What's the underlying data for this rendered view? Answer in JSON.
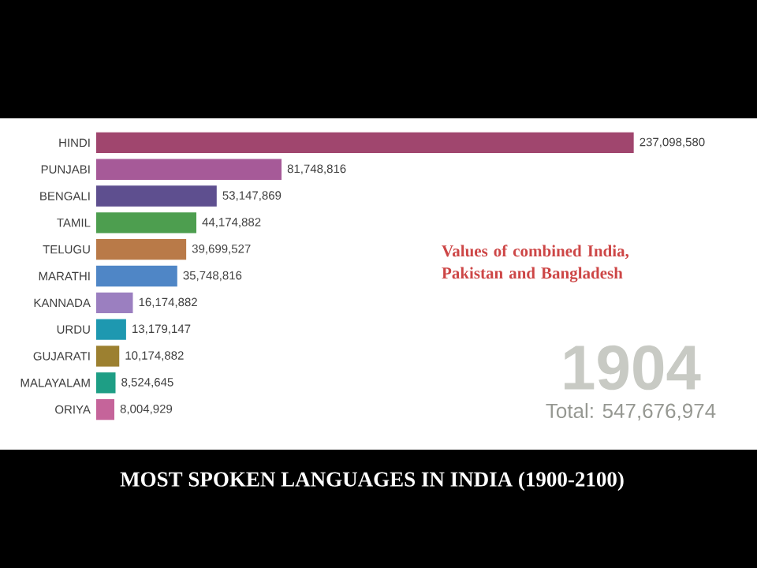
{
  "chart_data": {
    "type": "bar",
    "orientation": "horizontal",
    "title": "MOST SPOKEN LANGUAGES IN INDIA (1900-2100)",
    "categories": [
      "HINDI",
      "PUNJABI",
      "BENGALI",
      "TAMIL",
      "TELUGU",
      "MARATHI",
      "KANNADA",
      "URDU",
      "GUJARATI",
      "MALAYALAM",
      "ORIYA"
    ],
    "values": [
      237098580,
      81748816,
      53147869,
      44174882,
      39699527,
      35748816,
      16174882,
      13179147,
      10174882,
      8524645,
      8004929
    ],
    "value_labels": [
      "237,098,580",
      "81,748,816",
      "53,147,869",
      "44,174,882",
      "39,699,527",
      "35,748,816",
      "16,174,882",
      "13,179,147",
      "10,174,882",
      "8,524,645",
      "8,004,929"
    ],
    "colors": [
      "#a0466e",
      "#a65a98",
      "#5e4f8f",
      "#4d9e4f",
      "#b97a48",
      "#4f86c6",
      "#9b7fc0",
      "#1e98b0",
      "#9c8030",
      "#1e9e85",
      "#c5649a"
    ],
    "tick_labels": "y",
    "annotations": [
      "Values of combined India, Pakistan and Bangladesh",
      "1904",
      "Total: 547,676,974"
    ]
  }
}
